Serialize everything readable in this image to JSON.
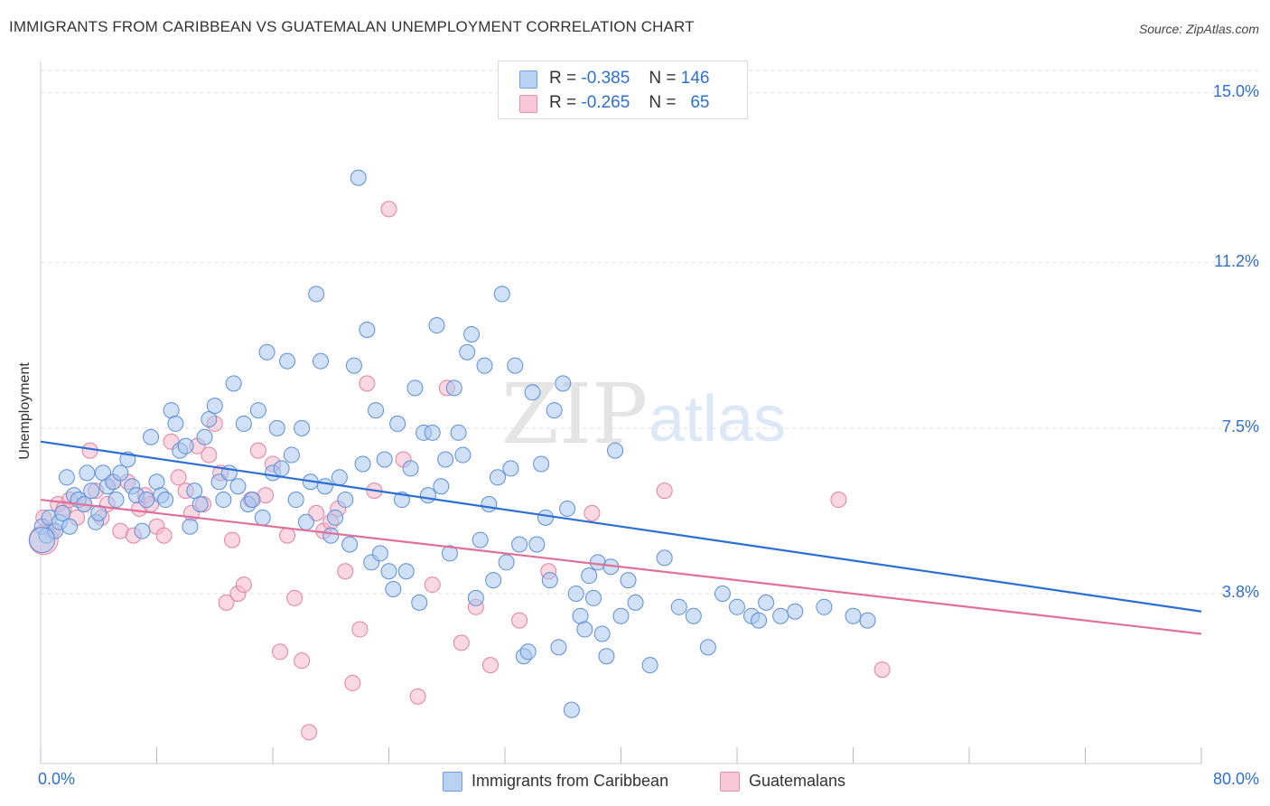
{
  "title": "IMMIGRANTS FROM CARIBBEAN VS GUATEMALAN UNEMPLOYMENT CORRELATION CHART",
  "source": "Source: ZipAtlas.com",
  "watermark": {
    "zip": "ZIP",
    "atlas": "atlas"
  },
  "legend": {
    "rows": [
      {
        "r_label": "R =",
        "r_value": "-0.385",
        "n_label": "N =",
        "n_value": "146"
      },
      {
        "r_label": "R =",
        "r_value": "-0.265",
        "n_label": "N =",
        "n_value": "65"
      }
    ]
  },
  "colors": {
    "blue_fill": "#a9c7ef",
    "blue_stroke": "#5b8fd6",
    "blue_line": "#2b6fd6",
    "pink_fill": "#f6b8cc",
    "pink_stroke": "#e37fa2",
    "pink_line": "#e0709a",
    "axis_text": "#2e6fd1",
    "grid": "#dddddd"
  },
  "chart_data": {
    "type": "scatter",
    "title": "IMMIGRANTS FROM CARIBBEAN VS GUATEMALAN UNEMPLOYMENT CORRELATION CHART",
    "xlabel": "",
    "ylabel": "Unemployment",
    "xlim": [
      0,
      80
    ],
    "ylim": [
      0,
      15.5
    ],
    "x_tick_labels": [
      "0.0%",
      "80.0%"
    ],
    "y_ticks": [
      3.8,
      7.5,
      11.2,
      15.0
    ],
    "y_tick_labels": [
      "3.8%",
      "7.5%",
      "11.2%",
      "15.0%"
    ],
    "grid": true,
    "legend_position": "top-center",
    "series": [
      {
        "name": "Immigrants from Caribbean",
        "color": "#a9c7ef",
        "trend": {
          "x": [
            0,
            80
          ],
          "y": [
            7.2,
            3.4
          ]
        },
        "points": [
          [
            0.1,
            5.3
          ],
          [
            0.4,
            5.1
          ],
          [
            0.6,
            5.5
          ],
          [
            1.0,
            5.2
          ],
          [
            1.3,
            5.4
          ],
          [
            1.5,
            5.6
          ],
          [
            1.8,
            6.4
          ],
          [
            2.0,
            5.3
          ],
          [
            2.3,
            6.0
          ],
          [
            2.6,
            5.9
          ],
          [
            3.0,
            5.8
          ],
          [
            3.2,
            6.5
          ],
          [
            3.5,
            6.1
          ],
          [
            3.8,
            5.4
          ],
          [
            4.0,
            5.6
          ],
          [
            4.3,
            6.5
          ],
          [
            4.6,
            6.2
          ],
          [
            5.0,
            6.3
          ],
          [
            5.2,
            5.9
          ],
          [
            5.5,
            6.5
          ],
          [
            6.0,
            6.8
          ],
          [
            6.3,
            6.2
          ],
          [
            6.6,
            6.0
          ],
          [
            7.0,
            5.2
          ],
          [
            7.3,
            5.9
          ],
          [
            7.6,
            7.3
          ],
          [
            8.0,
            6.3
          ],
          [
            8.3,
            6.0
          ],
          [
            8.6,
            5.9
          ],
          [
            9.0,
            7.9
          ],
          [
            9.3,
            7.6
          ],
          [
            9.6,
            7.0
          ],
          [
            10.0,
            7.1
          ],
          [
            10.3,
            5.3
          ],
          [
            10.6,
            6.1
          ],
          [
            11.0,
            5.8
          ],
          [
            11.3,
            7.3
          ],
          [
            11.6,
            7.7
          ],
          [
            12.0,
            8.0
          ],
          [
            12.3,
            6.3
          ],
          [
            12.6,
            5.9
          ],
          [
            13.0,
            6.5
          ],
          [
            13.3,
            8.5
          ],
          [
            13.6,
            6.2
          ],
          [
            14.0,
            7.6
          ],
          [
            14.3,
            5.8
          ],
          [
            14.6,
            5.9
          ],
          [
            15.0,
            7.9
          ],
          [
            15.3,
            5.5
          ],
          [
            15.6,
            9.2
          ],
          [
            16.0,
            6.5
          ],
          [
            16.3,
            7.5
          ],
          [
            16.6,
            6.6
          ],
          [
            17.0,
            9.0
          ],
          [
            17.3,
            6.9
          ],
          [
            17.6,
            5.9
          ],
          [
            18.0,
            7.5
          ],
          [
            18.3,
            5.4
          ],
          [
            18.6,
            6.3
          ],
          [
            19.0,
            10.5
          ],
          [
            19.3,
            9.0
          ],
          [
            19.6,
            6.2
          ],
          [
            20.0,
            5.1
          ],
          [
            20.3,
            5.5
          ],
          [
            20.6,
            6.4
          ],
          [
            21.0,
            5.9
          ],
          [
            21.3,
            4.9
          ],
          [
            21.6,
            8.9
          ],
          [
            21.9,
            13.1
          ],
          [
            22.2,
            6.7
          ],
          [
            22.5,
            9.7
          ],
          [
            22.8,
            4.5
          ],
          [
            23.1,
            7.9
          ],
          [
            23.4,
            4.7
          ],
          [
            23.7,
            6.8
          ],
          [
            24.0,
            4.3
          ],
          [
            24.3,
            3.9
          ],
          [
            24.6,
            7.6
          ],
          [
            24.9,
            5.9
          ],
          [
            25.2,
            4.3
          ],
          [
            25.5,
            6.6
          ],
          [
            25.8,
            8.4
          ],
          [
            26.1,
            3.6
          ],
          [
            26.4,
            7.4
          ],
          [
            26.7,
            6.0
          ],
          [
            27.0,
            7.4
          ],
          [
            27.3,
            9.8
          ],
          [
            27.6,
            6.2
          ],
          [
            27.9,
            6.8
          ],
          [
            28.2,
            4.7
          ],
          [
            28.5,
            8.4
          ],
          [
            28.8,
            7.4
          ],
          [
            29.1,
            6.9
          ],
          [
            29.4,
            9.2
          ],
          [
            29.7,
            9.6
          ],
          [
            30.0,
            3.7
          ],
          [
            30.3,
            5.0
          ],
          [
            30.6,
            8.9
          ],
          [
            30.9,
            5.8
          ],
          [
            31.2,
            4.1
          ],
          [
            31.5,
            6.4
          ],
          [
            31.8,
            10.5
          ],
          [
            32.1,
            4.5
          ],
          [
            32.4,
            6.6
          ],
          [
            32.7,
            8.9
          ],
          [
            33.0,
            4.9
          ],
          [
            33.3,
            2.4
          ],
          [
            33.6,
            2.5
          ],
          [
            33.9,
            8.3
          ],
          [
            34.2,
            4.9
          ],
          [
            34.5,
            6.7
          ],
          [
            34.8,
            5.5
          ],
          [
            35.1,
            4.1
          ],
          [
            35.4,
            7.9
          ],
          [
            35.7,
            2.6
          ],
          [
            36.0,
            8.5
          ],
          [
            36.3,
            5.7
          ],
          [
            36.6,
            1.2
          ],
          [
            36.9,
            3.8
          ],
          [
            37.2,
            3.3
          ],
          [
            37.5,
            3.0
          ],
          [
            37.8,
            4.2
          ],
          [
            38.1,
            3.7
          ],
          [
            38.4,
            4.5
          ],
          [
            38.7,
            2.9
          ],
          [
            39.0,
            2.4
          ],
          [
            39.3,
            4.4
          ],
          [
            39.6,
            7.0
          ],
          [
            40.0,
            3.3
          ],
          [
            40.5,
            4.1
          ],
          [
            41.0,
            3.6
          ],
          [
            42.0,
            2.2
          ],
          [
            43.0,
            4.6
          ],
          [
            44.0,
            3.5
          ],
          [
            45.0,
            3.3
          ],
          [
            46.0,
            2.6
          ],
          [
            47.0,
            3.8
          ],
          [
            48.0,
            3.5
          ],
          [
            49.0,
            3.3
          ],
          [
            49.5,
            3.2
          ],
          [
            50.0,
            3.6
          ],
          [
            51.0,
            3.3
          ],
          [
            52.0,
            3.4
          ],
          [
            54.0,
            3.5
          ],
          [
            56.0,
            3.3
          ],
          [
            57.0,
            3.2
          ]
        ]
      },
      {
        "name": "Guatemalans",
        "color": "#f6b8cc",
        "trend": {
          "x": [
            0,
            80
          ],
          "y": [
            5.9,
            2.9
          ]
        },
        "points": [
          [
            0.2,
            5.5
          ],
          [
            0.8,
            5.2
          ],
          [
            1.2,
            5.8
          ],
          [
            1.6,
            5.7
          ],
          [
            2.0,
            5.9
          ],
          [
            2.5,
            5.5
          ],
          [
            3.0,
            5.8
          ],
          [
            3.4,
            7.0
          ],
          [
            3.8,
            6.1
          ],
          [
            4.2,
            5.5
          ],
          [
            4.6,
            5.8
          ],
          [
            5.0,
            6.3
          ],
          [
            5.5,
            5.2
          ],
          [
            6.0,
            6.3
          ],
          [
            6.4,
            5.1
          ],
          [
            6.8,
            5.7
          ],
          [
            7.2,
            6.0
          ],
          [
            7.6,
            5.8
          ],
          [
            8.0,
            5.3
          ],
          [
            8.5,
            5.1
          ],
          [
            9.0,
            7.2
          ],
          [
            9.5,
            6.4
          ],
          [
            10.0,
            6.1
          ],
          [
            10.4,
            5.6
          ],
          [
            10.8,
            7.1
          ],
          [
            11.2,
            5.8
          ],
          [
            11.6,
            6.9
          ],
          [
            12.0,
            7.6
          ],
          [
            12.4,
            6.5
          ],
          [
            12.8,
            3.6
          ],
          [
            13.2,
            5.0
          ],
          [
            13.6,
            3.8
          ],
          [
            14.0,
            4.0
          ],
          [
            14.5,
            5.9
          ],
          [
            15.0,
            7.0
          ],
          [
            15.5,
            6.0
          ],
          [
            16.0,
            6.7
          ],
          [
            16.5,
            2.5
          ],
          [
            17.0,
            5.1
          ],
          [
            17.5,
            3.7
          ],
          [
            18.0,
            2.3
          ],
          [
            18.5,
            0.7
          ],
          [
            19.0,
            5.6
          ],
          [
            19.5,
            5.2
          ],
          [
            20.0,
            5.4
          ],
          [
            20.5,
            5.7
          ],
          [
            21.0,
            4.3
          ],
          [
            21.5,
            1.8
          ],
          [
            22.0,
            3.0
          ],
          [
            22.5,
            8.5
          ],
          [
            23.0,
            6.1
          ],
          [
            24.0,
            12.4
          ],
          [
            25.0,
            6.8
          ],
          [
            26.0,
            1.5
          ],
          [
            27.0,
            4.0
          ],
          [
            28.0,
            8.4
          ],
          [
            29.0,
            2.7
          ],
          [
            30.0,
            3.5
          ],
          [
            31.0,
            2.2
          ],
          [
            33.0,
            3.2
          ],
          [
            35.0,
            4.3
          ],
          [
            38.0,
            5.6
          ],
          [
            43.0,
            6.1
          ],
          [
            55.0,
            5.9
          ],
          [
            58.0,
            2.1
          ]
        ]
      }
    ]
  },
  "bottom_legend": [
    "Immigrants from Caribbean",
    "Guatemalans"
  ]
}
